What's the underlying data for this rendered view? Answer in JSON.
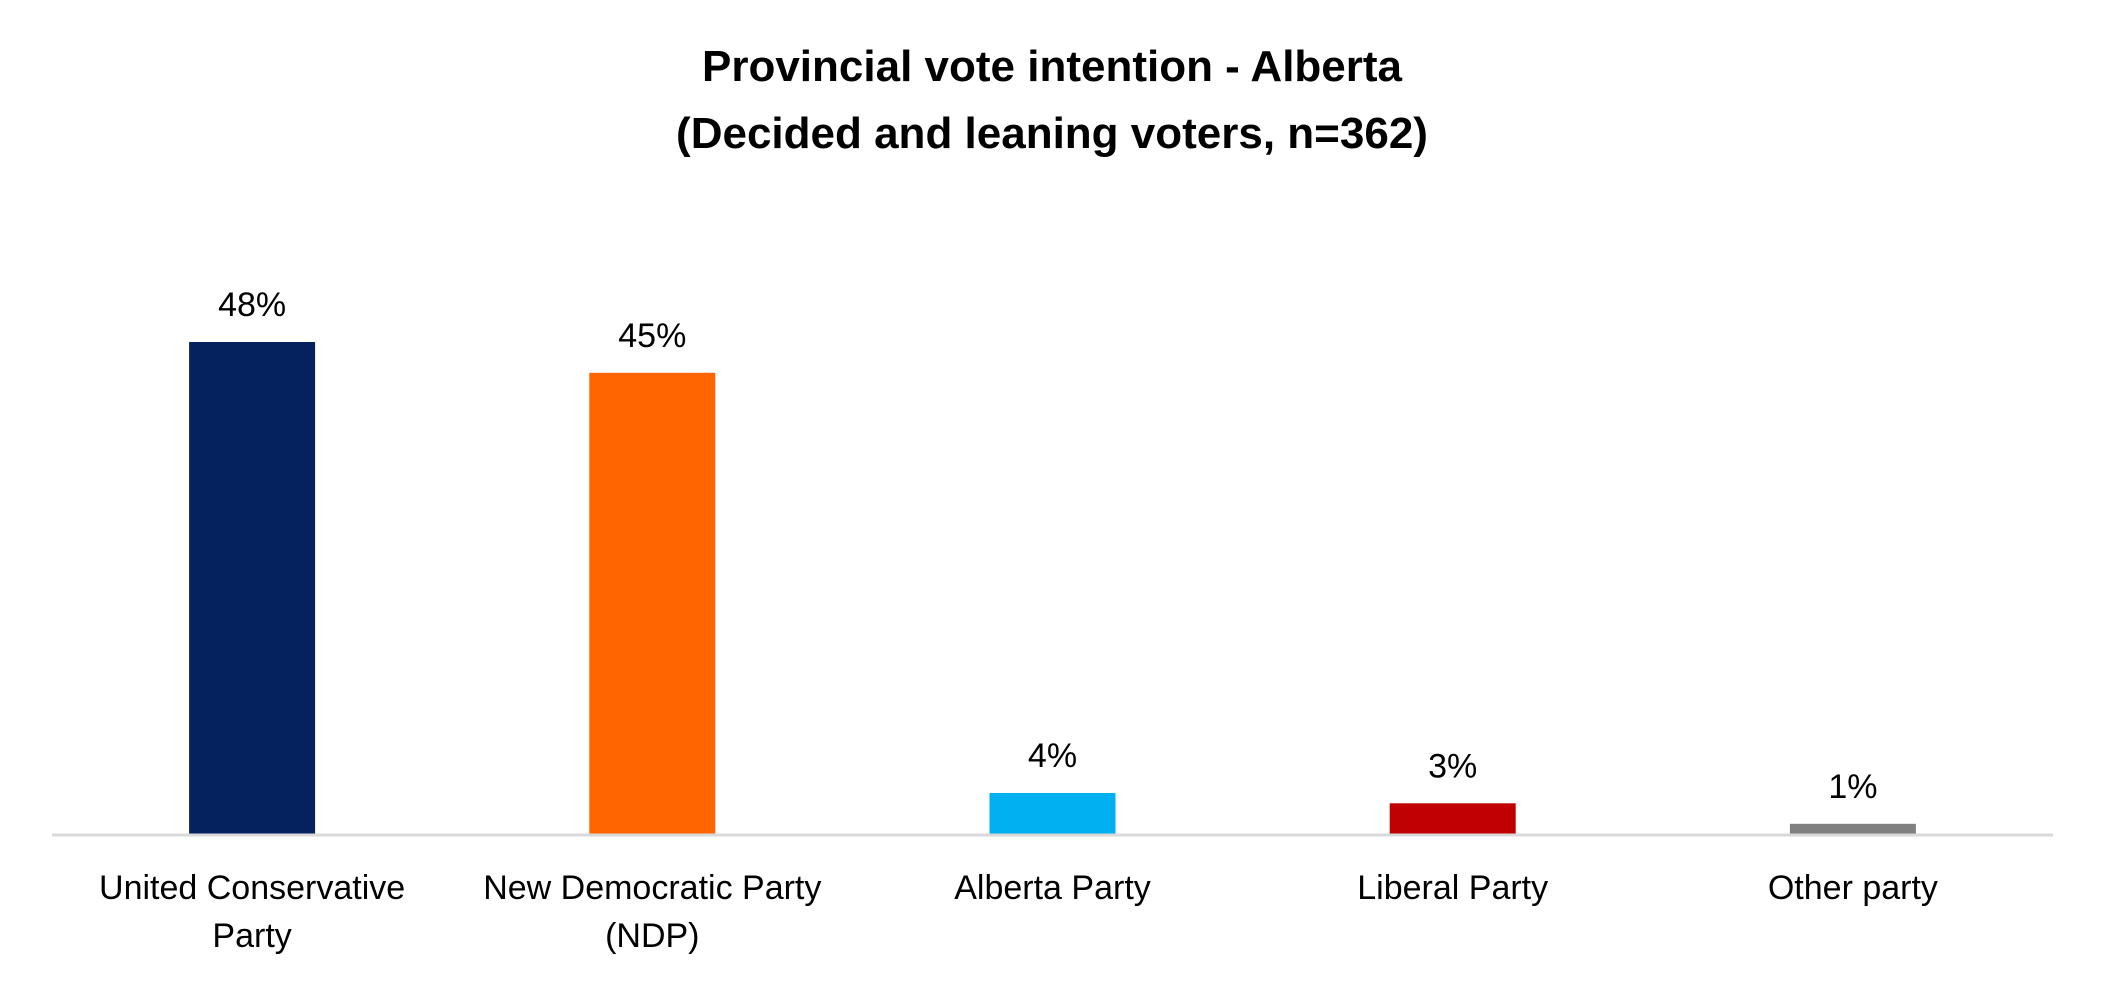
{
  "chart_data": {
    "type": "bar",
    "title_lines": [
      "Provincial vote intention - Alberta",
      "(Decided and leaning voters, n=362)"
    ],
    "categories": [
      [
        "United Conservative",
        "Party"
      ],
      [
        "New Democratic Party",
        "(NDP)"
      ],
      [
        "Alberta Party"
      ],
      [
        "Liberal Party"
      ],
      [
        "Other party"
      ]
    ],
    "values": [
      48,
      45,
      4,
      3,
      1
    ],
    "value_labels": [
      "48%",
      "45%",
      "4%",
      "3%",
      "1%"
    ],
    "colors": [
      "#05215E",
      "#FF6600",
      "#00B0F0",
      "#C00000",
      "#808080"
    ],
    "ylim": [
      0,
      50
    ],
    "grid": false,
    "legend": "none",
    "axis_line_color": "#D9D9D9"
  }
}
